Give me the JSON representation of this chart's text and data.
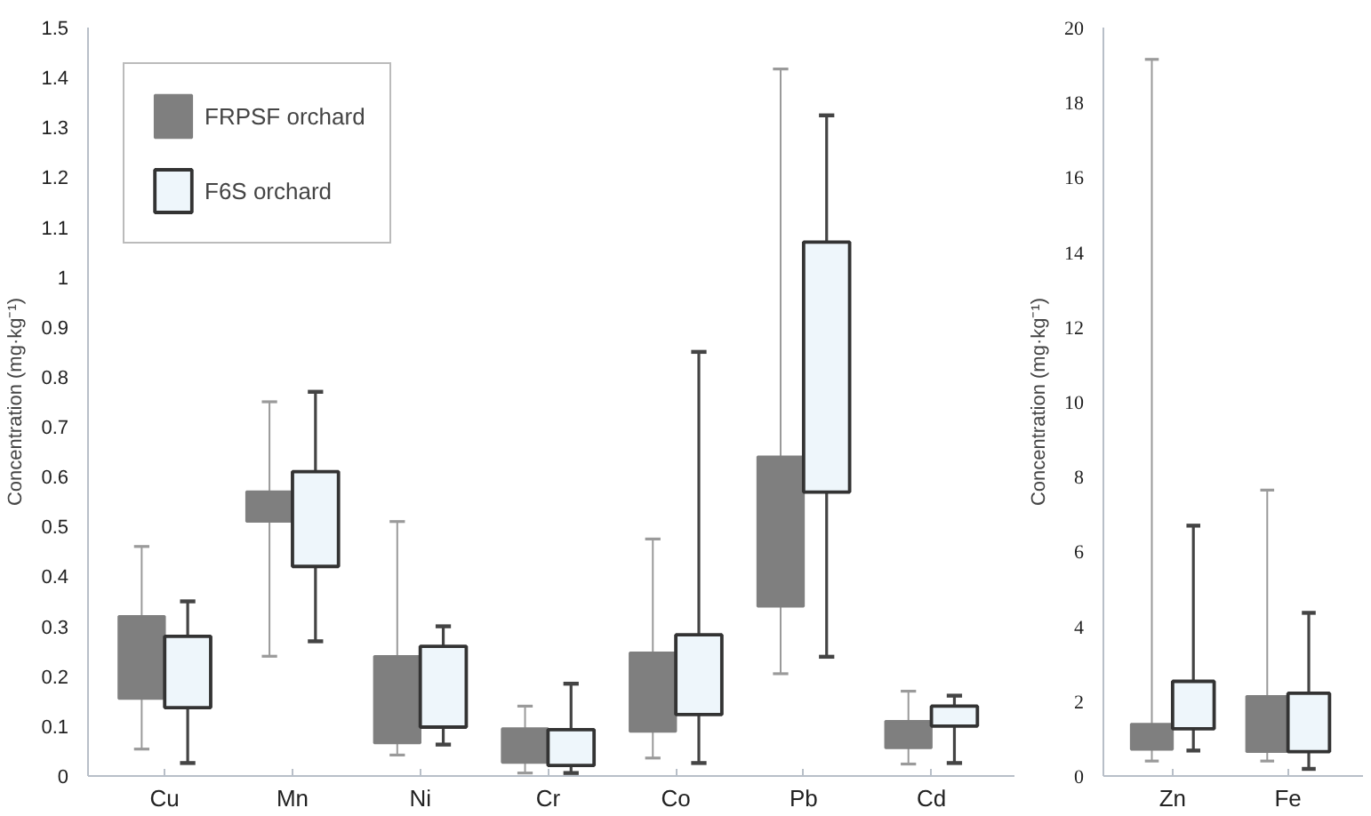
{
  "chart_data": [
    {
      "type": "box",
      "ylabel": "Concentration (mg·kg⁻¹)",
      "categories": [
        "Cu",
        "Mn",
        "Ni",
        "Cr",
        "Co",
        "Pb",
        "Cd"
      ],
      "ylim": [
        0,
        1.5
      ],
      "yticks": [
        0,
        0.1,
        0.2,
        0.3,
        0.4,
        0.5,
        0.6,
        0.7,
        0.8,
        0.9,
        1,
        1.1,
        1.2,
        1.3,
        1.4,
        1.5
      ],
      "legend": "top left",
      "grid": false,
      "series": [
        {
          "name": "FRPSF orchard",
          "color": "#7f7f7f",
          "boxes": [
            {
              "low": 0.054,
              "q1": 0.155,
              "q3": 0.32,
              "high": 0.46
            },
            {
              "low": 0.24,
              "q1": 0.51,
              "q3": 0.57,
              "high": 0.75
            },
            {
              "low": 0.042,
              "q1": 0.066,
              "q3": 0.24,
              "high": 0.51
            },
            {
              "low": 0.006,
              "q1": 0.027,
              "q3": 0.095,
              "high": 0.14
            },
            {
              "low": 0.036,
              "q1": 0.089,
              "q3": 0.247,
              "high": 0.475
            },
            {
              "low": 0.205,
              "q1": 0.34,
              "q3": 0.64,
              "high": 1.417
            },
            {
              "low": 0.024,
              "q1": 0.056,
              "q3": 0.11,
              "high": 0.17
            }
          ]
        },
        {
          "name": "F6S orchard",
          "color": "#eef6fb",
          "boxes": [
            {
              "low": 0.026,
              "q1": 0.137,
              "q3": 0.28,
              "high": 0.35
            },
            {
              "low": 0.27,
              "q1": 0.42,
              "q3": 0.61,
              "high": 0.77
            },
            {
              "low": 0.063,
              "q1": 0.098,
              "q3": 0.26,
              "high": 0.3
            },
            {
              "low": 0.006,
              "q1": 0.021,
              "q3": 0.093,
              "high": 0.185
            },
            {
              "low": 0.026,
              "q1": 0.123,
              "q3": 0.283,
              "high": 0.85
            },
            {
              "low": 0.239,
              "q1": 0.569,
              "q3": 1.07,
              "high": 1.324
            },
            {
              "low": 0.026,
              "q1": 0.1,
              "q3": 0.14,
              "high": 0.161
            }
          ]
        }
      ]
    },
    {
      "type": "box",
      "ylabel": "Concentration (mg·kg⁻¹)",
      "categories": [
        "Zn",
        "Fe"
      ],
      "ylim": [
        0,
        20
      ],
      "yticks": [
        0,
        2,
        4,
        6,
        8,
        10,
        12,
        14,
        16,
        18,
        20
      ],
      "grid": false,
      "series": [
        {
          "color": "#7f7f7f",
          "boxes": [
            {
              "low": 0.4,
              "q1": 0.71,
              "q3": 1.39,
              "high": 19.15
            },
            {
              "low": 0.4,
              "q1": 0.65,
              "q3": 2.13,
              "high": 7.64
            }
          ]
        },
        {
          "color": "#eef6fb",
          "boxes": [
            {
              "low": 0.68,
              "q1": 1.26,
              "q3": 2.53,
              "high": 6.69
            },
            {
              "low": 0.19,
              "q1": 0.65,
              "q3": 2.21,
              "high": 4.36
            }
          ]
        }
      ]
    }
  ]
}
